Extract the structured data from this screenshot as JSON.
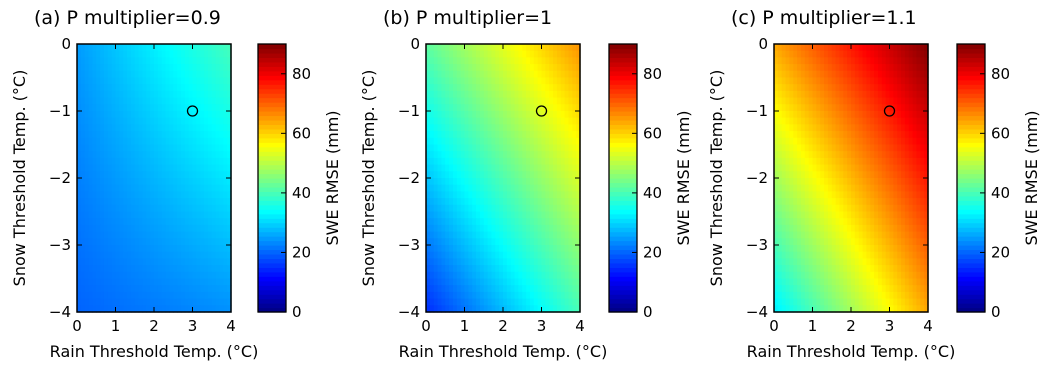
{
  "colorbar": {
    "label": "SWE RMSE (mm)",
    "ticks": [
      0,
      20,
      40,
      60,
      80
    ],
    "range": [
      0,
      90
    ]
  },
  "chart_data": [
    {
      "type": "heatmap",
      "title": "(a) P multiplier=0.9",
      "xlabel": "Rain Threshold Temp. (°C)",
      "ylabel": "Snow Threshold Temp. (°C)",
      "xlim": [
        0,
        4
      ],
      "ylim": [
        -4,
        0
      ],
      "xticks": [
        0,
        1,
        2,
        3,
        4
      ],
      "yticks": [
        0,
        -1,
        -2,
        -3,
        -4
      ],
      "corner_values": {
        "x0_y0": 25,
        "x4_y0": 40,
        "x0_ym4": 20,
        "x4_ym4": 24
      },
      "marker": {
        "x": 3,
        "y": -1
      }
    },
    {
      "type": "heatmap",
      "title": "(b) P multiplier=1",
      "xlabel": "Rain Threshold Temp. (°C)",
      "ylabel": "Snow Threshold Temp. (°C)",
      "xlim": [
        0,
        4
      ],
      "ylim": [
        -4,
        0
      ],
      "xticks": [
        0,
        1,
        2,
        3,
        4
      ],
      "yticks": [
        0,
        -1,
        -2,
        -3,
        -4
      ],
      "corner_values": {
        "x0_y0": 42,
        "x4_y0": 66,
        "x0_ym4": 15,
        "x4_ym4": 40
      },
      "marker": {
        "x": 3,
        "y": -1
      }
    },
    {
      "type": "heatmap",
      "title": "(c) P multiplier=1.1",
      "xlabel": "Rain Threshold Temp. (°C)",
      "ylabel": "Snow Threshold Temp. (°C)",
      "xlim": [
        0,
        4
      ],
      "ylim": [
        -4,
        0
      ],
      "xticks": [
        0,
        1,
        2,
        3,
        4
      ],
      "yticks": [
        0,
        -1,
        -2,
        -3,
        -4
      ],
      "corner_values": {
        "x0_y0": 64,
        "x4_y0": 90,
        "x0_ym4": 32,
        "x4_ym4": 64
      },
      "marker": {
        "x": 3,
        "y": -1
      }
    }
  ]
}
